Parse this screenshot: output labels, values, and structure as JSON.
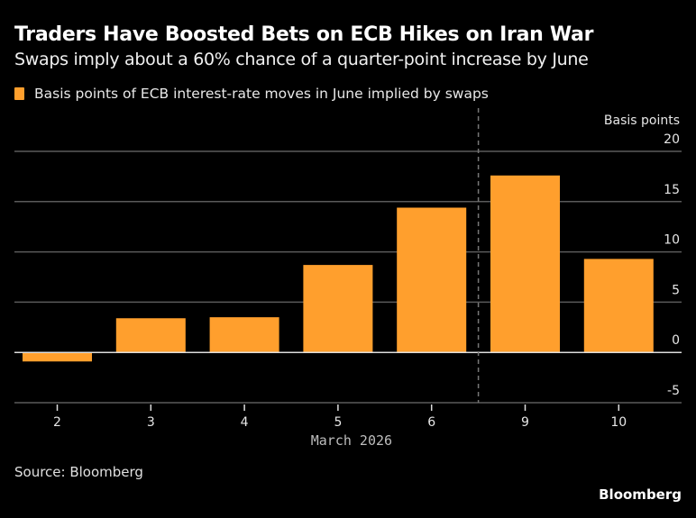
{
  "header": {
    "title": "Traders Have Boosted Bets on ECB Hikes on Iran War",
    "subtitle": "Swaps imply about a 60% chance of a quarter-point increase by June"
  },
  "footer": {
    "source": "Source: Bloomberg",
    "brand": "Bloomberg"
  },
  "chart_data": {
    "type": "bar",
    "title": "Traders Have Boosted Bets on ECB Hikes on Iran War",
    "subtitle": "Swaps imply about a 60% chance of a quarter-point increase by June",
    "categories": [
      "2",
      "3",
      "4",
      "5",
      "6",
      "9",
      "10"
    ],
    "series": [
      {
        "name": "Basis points of ECB interest-rate moves in June implied by swaps",
        "color": "#ff9f2d",
        "values": [
          -0.9,
          3.4,
          3.5,
          8.7,
          14.4,
          17.6,
          9.3
        ]
      }
    ],
    "xlabel": "March 2026",
    "ylabel": "Basis points",
    "ylim": [
      -5,
      20
    ],
    "yticks": [
      -5,
      0,
      5,
      10,
      15,
      20
    ],
    "y_axis_side": "right",
    "grid": true,
    "legend_position": "top-left",
    "annotations": [
      {
        "type": "vertical-dashed-line",
        "between": [
          "6",
          "9"
        ]
      }
    ]
  }
}
